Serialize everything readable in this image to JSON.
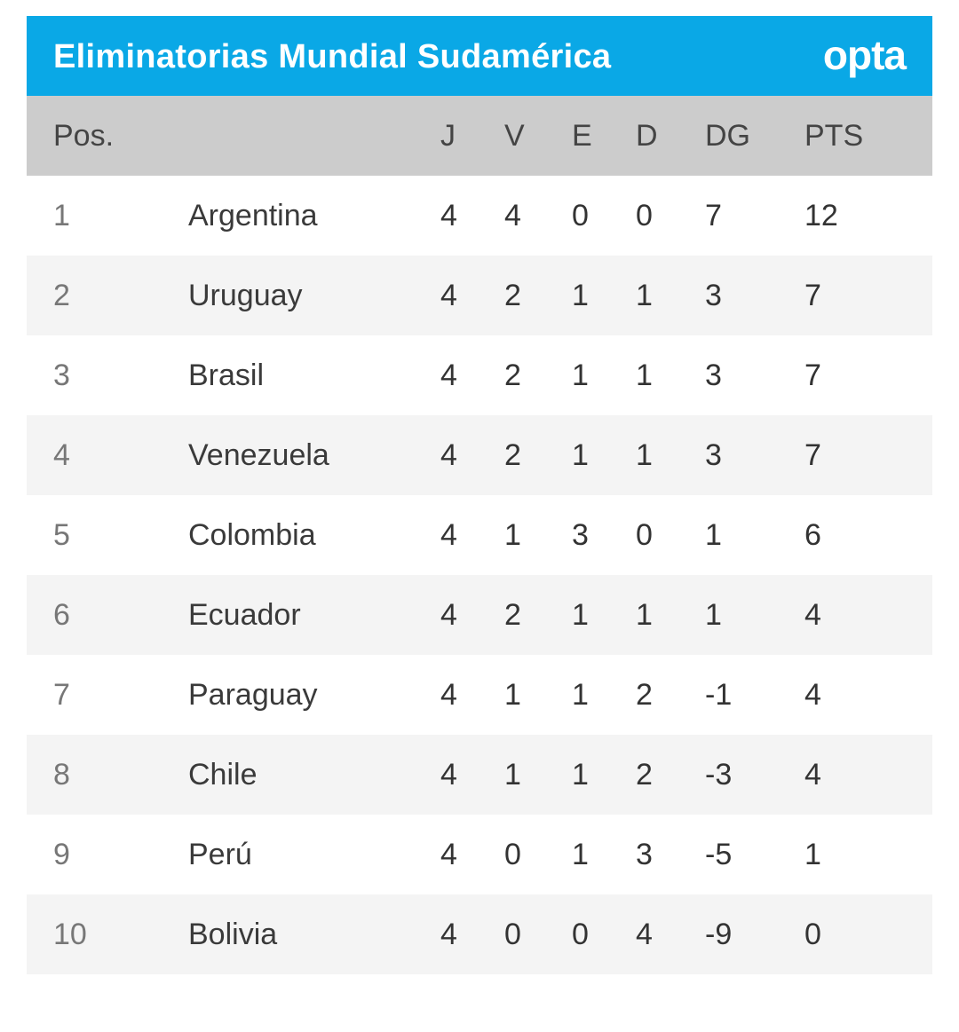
{
  "banner": {
    "title": "Eliminatorias Mundial Sudamérica",
    "brand": "opta",
    "color": "#0aa8e6"
  },
  "table": {
    "columns": {
      "pos": "Pos.",
      "j": "J",
      "v": "V",
      "e": "E",
      "d": "D",
      "dg": "DG",
      "pts": "PTS"
    },
    "rows": [
      {
        "pos": "1",
        "team": "Argentina",
        "j": "4",
        "v": "4",
        "e": "0",
        "d": "0",
        "dg": "7",
        "pts": "12"
      },
      {
        "pos": "2",
        "team": "Uruguay",
        "j": "4",
        "v": "2",
        "e": "1",
        "d": "1",
        "dg": "3",
        "pts": "7"
      },
      {
        "pos": "3",
        "team": "Brasil",
        "j": "4",
        "v": "2",
        "e": "1",
        "d": "1",
        "dg": "3",
        "pts": "7"
      },
      {
        "pos": "4",
        "team": "Venezuela",
        "j": "4",
        "v": "2",
        "e": "1",
        "d": "1",
        "dg": "3",
        "pts": "7"
      },
      {
        "pos": "5",
        "team": "Colombia",
        "j": "4",
        "v": "1",
        "e": "3",
        "d": "0",
        "dg": "1",
        "pts": "6"
      },
      {
        "pos": "6",
        "team": "Ecuador",
        "j": "4",
        "v": "2",
        "e": "1",
        "d": "1",
        "dg": "1",
        "pts": "4"
      },
      {
        "pos": "7",
        "team": "Paraguay",
        "j": "4",
        "v": "1",
        "e": "1",
        "d": "2",
        "dg": "-1",
        "pts": "4"
      },
      {
        "pos": "8",
        "team": "Chile",
        "j": "4",
        "v": "1",
        "e": "1",
        "d": "2",
        "dg": "-3",
        "pts": "4"
      },
      {
        "pos": "9",
        "team": "Perú",
        "j": "4",
        "v": "0",
        "e": "1",
        "d": "3",
        "dg": "-5",
        "pts": "1"
      },
      {
        "pos": "10",
        "team": "Bolivia",
        "j": "4",
        "v": "0",
        "e": "0",
        "d": "4",
        "dg": "-9",
        "pts": "0"
      }
    ]
  }
}
